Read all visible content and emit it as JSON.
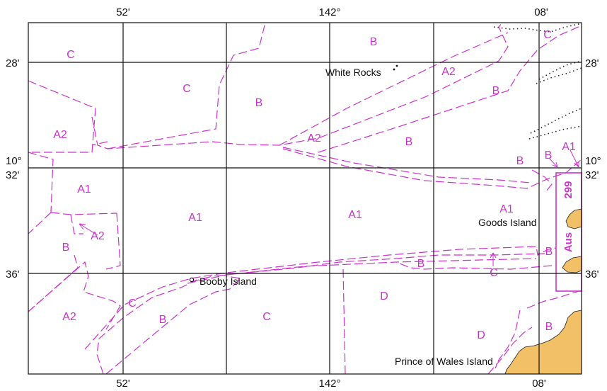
{
  "colors": {
    "zone_line": "#cc33cc",
    "grid": "#111111",
    "land": "#f2c066",
    "background": "#ffffff"
  },
  "ticks": {
    "top": [
      "52'",
      "142°",
      "08'"
    ],
    "bottom": [
      "52'",
      "142°",
      "08'"
    ],
    "left": [
      "28'",
      "10°",
      "32'",
      "36'"
    ],
    "right": [
      "28'",
      "10°",
      "32'",
      "36'"
    ]
  },
  "zones": [
    "C",
    "B",
    "C",
    "B",
    "A2",
    "B",
    "A2",
    "A2",
    "B",
    "C",
    "B",
    "A1",
    "A1",
    "A1",
    "A1",
    "A1",
    "A2",
    "B",
    "B",
    "B",
    "B",
    "A2",
    "C",
    "B",
    "C",
    "D",
    "D",
    "B",
    "C"
  ],
  "places": {
    "white_rocks": "White Rocks",
    "goods_island": "Goods Island",
    "booby_island": "Booby Island",
    "prince_of_wales": "Prince of Wales Island"
  },
  "chart_ref": {
    "number": "299",
    "prefix": "Aus"
  }
}
